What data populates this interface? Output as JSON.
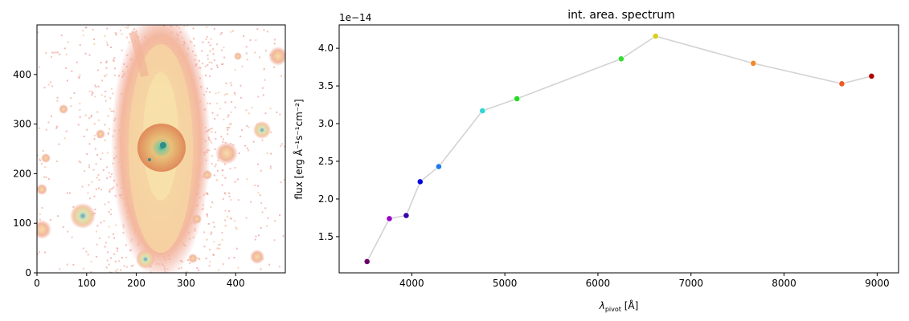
{
  "chart_data": [
    {
      "type": "image",
      "xlim": [
        0,
        500
      ],
      "ylim": [
        0,
        500
      ],
      "x_ticks": [
        0,
        100,
        200,
        300,
        400
      ],
      "y_ticks": [
        0,
        100,
        200,
        300,
        400
      ]
    },
    {
      "type": "line",
      "title": "int. area. spectrum",
      "xlabel_main": "λ",
      "xlabel_sub": "pivot",
      "xlabel_unit": "[Å]",
      "ylabel": "flux [erg Å⁻¹s⁻¹cm⁻²]",
      "offset_label": "1e−14",
      "xlim": [
        3220,
        9230
      ],
      "ylim": [
        1.02,
        4.31
      ],
      "x_ticks": [
        3000,
        4000,
        5000,
        6000,
        7000,
        8000,
        9000
      ],
      "y_ticks": [
        1.5,
        2.0,
        2.5,
        3.0,
        3.5,
        4.0
      ],
      "y_tick_labels": [
        "1.5",
        "2.0",
        "2.5",
        "3.0",
        "3.5",
        "4.0"
      ],
      "x_tick_labels": [
        "3000",
        "4000",
        "5000",
        "6000",
        "7000",
        "8000",
        "9000"
      ],
      "line_color": "#d3d3d3",
      "points": [
        {
          "x": 3520,
          "y": 1.17,
          "color": "#6a006a"
        },
        {
          "x": 3760,
          "y": 1.74,
          "color": "#9a00cc"
        },
        {
          "x": 3940,
          "y": 1.78,
          "color": "#3b00a8"
        },
        {
          "x": 4090,
          "y": 2.23,
          "color": "#0000dd"
        },
        {
          "x": 4290,
          "y": 2.43,
          "color": "#1e7be8"
        },
        {
          "x": 4760,
          "y": 3.17,
          "color": "#2fd5d5"
        },
        {
          "x": 5130,
          "y": 3.33,
          "color": "#22dd22"
        },
        {
          "x": 6250,
          "y": 3.86,
          "color": "#33dd33"
        },
        {
          "x": 6620,
          "y": 4.16,
          "color": "#d8cf20"
        },
        {
          "x": 7670,
          "y": 3.8,
          "color": "#f08a2a"
        },
        {
          "x": 8620,
          "y": 3.53,
          "color": "#ef5a22"
        },
        {
          "x": 8940,
          "y": 3.63,
          "color": "#b00000"
        }
      ]
    }
  ]
}
